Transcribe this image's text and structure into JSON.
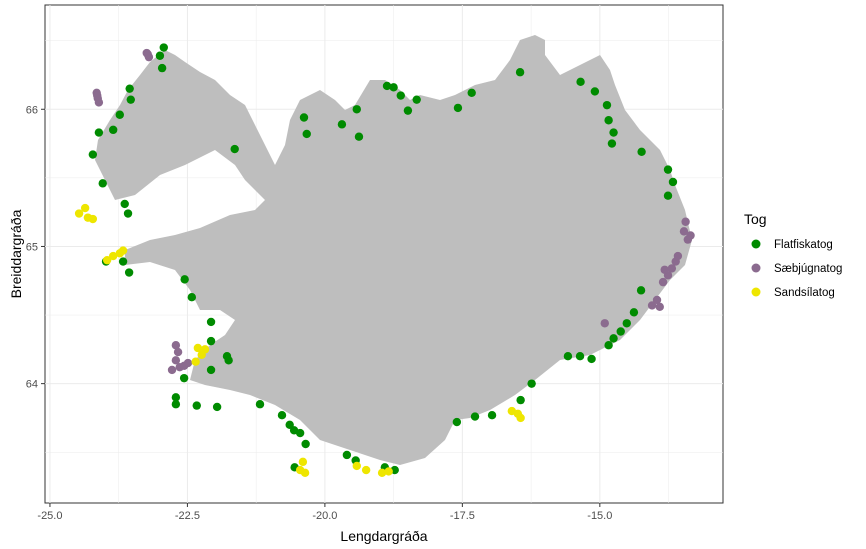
{
  "chart_data": {
    "type": "scatter",
    "title": "",
    "xlabel": "Lengdargráða",
    "ylabel": "Breiddargráða",
    "xlim": [
      -25.09,
      -12.76
    ],
    "ylim": [
      63.13,
      66.76
    ],
    "xticks": [
      -25.0,
      -22.5,
      -20.0,
      -17.5,
      -15.0
    ],
    "xtick_labels": [
      "-25.0",
      "-22.5",
      "-20.0",
      "-17.5",
      "-15.0"
    ],
    "yticks": [
      64,
      65,
      66
    ],
    "ytick_labels": [
      "64",
      "65",
      "66"
    ],
    "grid": true,
    "legend": {
      "title": "Tog",
      "placement": "right"
    },
    "series": [
      {
        "name": "Flatfiskatog",
        "color": "#008b00",
        "points": [
          [
            -22.93,
            66.45
          ],
          [
            -23.0,
            66.39
          ],
          [
            -22.96,
            66.3
          ],
          [
            -23.55,
            66.15
          ],
          [
            -23.53,
            66.07
          ],
          [
            -23.73,
            65.96
          ],
          [
            -23.85,
            65.85
          ],
          [
            -24.11,
            65.83
          ],
          [
            -24.22,
            65.67
          ],
          [
            -24.04,
            65.46
          ],
          [
            -23.64,
            65.31
          ],
          [
            -23.58,
            65.24
          ],
          [
            -23.98,
            64.89
          ],
          [
            -23.67,
            64.89
          ],
          [
            -23.56,
            64.81
          ],
          [
            -22.55,
            64.76
          ],
          [
            -22.42,
            64.63
          ],
          [
            -22.07,
            64.45
          ],
          [
            -22.07,
            64.31
          ],
          [
            -21.78,
            64.2
          ],
          [
            -21.75,
            64.17
          ],
          [
            -22.07,
            64.1
          ],
          [
            -22.56,
            64.04
          ],
          [
            -22.71,
            63.9
          ],
          [
            -22.71,
            63.85
          ],
          [
            -22.33,
            63.84
          ],
          [
            -21.96,
            63.83
          ],
          [
            -21.18,
            63.85
          ],
          [
            -20.78,
            63.77
          ],
          [
            -20.64,
            63.7
          ],
          [
            -20.56,
            63.66
          ],
          [
            -20.45,
            63.64
          ],
          [
            -20.35,
            63.56
          ],
          [
            -20.55,
            63.39
          ],
          [
            -19.6,
            63.48
          ],
          [
            -19.44,
            63.44
          ],
          [
            -18.91,
            63.39
          ],
          [
            -18.73,
            63.37
          ],
          [
            -17.6,
            63.72
          ],
          [
            -17.27,
            63.76
          ],
          [
            -16.96,
            63.77
          ],
          [
            -16.44,
            63.88
          ],
          [
            -16.24,
            64.0
          ],
          [
            -15.58,
            64.2
          ],
          [
            -15.36,
            64.2
          ],
          [
            -15.15,
            64.18
          ],
          [
            -14.84,
            64.28
          ],
          [
            -14.75,
            64.33
          ],
          [
            -14.62,
            64.38
          ],
          [
            -14.51,
            64.44
          ],
          [
            -14.38,
            64.52
          ],
          [
            -14.25,
            64.68
          ],
          [
            -13.76,
            65.37
          ],
          [
            -13.67,
            65.47
          ],
          [
            -13.76,
            65.56
          ],
          [
            -14.24,
            65.69
          ],
          [
            -14.78,
            65.75
          ],
          [
            -14.75,
            65.83
          ],
          [
            -14.84,
            65.92
          ],
          [
            -14.87,
            66.03
          ],
          [
            -15.09,
            66.13
          ],
          [
            -15.35,
            66.2
          ],
          [
            -16.45,
            66.27
          ],
          [
            -17.33,
            66.12
          ],
          [
            -17.58,
            66.01
          ],
          [
            -18.33,
            66.07
          ],
          [
            -18.49,
            65.99
          ],
          [
            -18.62,
            66.1
          ],
          [
            -18.75,
            66.16
          ],
          [
            -18.87,
            66.17
          ],
          [
            -19.42,
            66.0
          ],
          [
            -19.38,
            65.8
          ],
          [
            -19.69,
            65.89
          ],
          [
            -20.33,
            65.82
          ],
          [
            -20.38,
            65.94
          ],
          [
            -21.64,
            65.71
          ]
        ]
      },
      {
        "name": "Sæbjúgnatog",
        "color": "#8b6b8f",
        "points": [
          [
            -23.24,
            66.41
          ],
          [
            -23.2,
            66.38
          ],
          [
            -23.22,
            66.4
          ],
          [
            -24.15,
            66.12
          ],
          [
            -24.13,
            66.08
          ],
          [
            -24.11,
            66.05
          ],
          [
            -24.14,
            66.1
          ],
          [
            -22.71,
            64.28
          ],
          [
            -22.67,
            64.23
          ],
          [
            -22.78,
            64.1
          ],
          [
            -22.64,
            64.12
          ],
          [
            -22.49,
            64.15
          ],
          [
            -22.56,
            64.13
          ],
          [
            -22.71,
            64.17
          ],
          [
            -13.96,
            64.61
          ],
          [
            -13.91,
            64.56
          ],
          [
            -14.05,
            64.57
          ],
          [
            -14.91,
            64.44
          ],
          [
            -13.85,
            64.74
          ],
          [
            -13.76,
            64.79
          ],
          [
            -13.69,
            64.84
          ],
          [
            -13.62,
            64.89
          ],
          [
            -13.58,
            64.93
          ],
          [
            -13.82,
            64.83
          ],
          [
            -13.44,
            65.18
          ],
          [
            -13.47,
            65.11
          ],
          [
            -13.4,
            65.05
          ],
          [
            -13.35,
            65.08
          ]
        ]
      },
      {
        "name": "Sandsílatog",
        "color": "#eee600",
        "points": [
          [
            -24.47,
            65.24
          ],
          [
            -24.36,
            65.28
          ],
          [
            -24.31,
            65.21
          ],
          [
            -24.22,
            65.2
          ],
          [
            -23.96,
            64.9
          ],
          [
            -23.85,
            64.93
          ],
          [
            -23.73,
            64.95
          ],
          [
            -23.67,
            64.97
          ],
          [
            -22.31,
            64.26
          ],
          [
            -22.24,
            64.21
          ],
          [
            -22.35,
            64.16
          ],
          [
            -22.18,
            64.25
          ],
          [
            -20.4,
            63.43
          ],
          [
            -20.36,
            63.35
          ],
          [
            -20.45,
            63.37
          ],
          [
            -19.42,
            63.4
          ],
          [
            -19.25,
            63.37
          ],
          [
            -18.96,
            63.35
          ],
          [
            -18.84,
            63.36
          ],
          [
            -16.6,
            63.8
          ],
          [
            -16.49,
            63.78
          ],
          [
            -16.44,
            63.75
          ]
        ]
      }
    ]
  }
}
